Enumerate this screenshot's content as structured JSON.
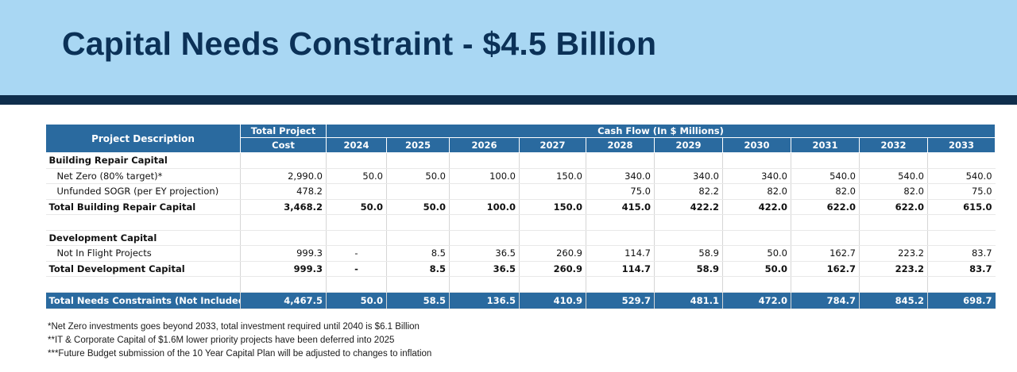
{
  "slide": {
    "title": "Capital Needs Constraint - $4.5 Billion"
  },
  "table": {
    "header": {
      "description_label": "Project Description",
      "total_cost_line1": "Total Project",
      "total_cost_line2": "Cost",
      "cashflow_label": "Cash Flow (In $ Millions)",
      "years": [
        "2024",
        "2025",
        "2026",
        "2027",
        "2028",
        "2029",
        "2030",
        "2031",
        "2032",
        "2033"
      ]
    },
    "rows": [
      {
        "kind": "section",
        "description": "Building Repair Capital",
        "total": "",
        "values": [
          "",
          "",
          "",
          "",
          "",
          "",
          "",
          "",
          "",
          ""
        ]
      },
      {
        "kind": "item",
        "description": "Net Zero (80% target)*",
        "total": "2,990.0",
        "values": [
          "50.0",
          "50.0",
          "100.0",
          "150.0",
          "340.0",
          "340.0",
          "340.0",
          "540.0",
          "540.0",
          "540.0"
        ]
      },
      {
        "kind": "item",
        "description": "Unfunded SOGR (per EY projection)",
        "total": "478.2",
        "values": [
          "",
          "",
          "",
          "",
          "75.0",
          "82.2",
          "82.0",
          "82.0",
          "82.0",
          "75.0"
        ]
      },
      {
        "kind": "total",
        "description": "Total Building Repair Capital",
        "total": "3,468.2",
        "values": [
          "50.0",
          "50.0",
          "100.0",
          "150.0",
          "415.0",
          "422.2",
          "422.0",
          "622.0",
          "622.0",
          "615.0"
        ]
      },
      {
        "kind": "blank",
        "description": "",
        "total": "",
        "values": [
          "",
          "",
          "",
          "",
          "",
          "",
          "",
          "",
          "",
          ""
        ]
      },
      {
        "kind": "section",
        "description": "Development Capital",
        "total": "",
        "values": [
          "",
          "",
          "",
          "",
          "",
          "",
          "",
          "",
          "",
          ""
        ]
      },
      {
        "kind": "item",
        "description": "Not In Flight Projects",
        "total": "999.3",
        "values": [
          "-",
          "8.5",
          "36.5",
          "260.9",
          "114.7",
          "58.9",
          "50.0",
          "162.7",
          "223.2",
          "83.7"
        ]
      },
      {
        "kind": "total",
        "description": "Total Development Capital",
        "total": "999.3",
        "values": [
          "-",
          "8.5",
          "36.5",
          "260.9",
          "114.7",
          "58.9",
          "50.0",
          "162.7",
          "223.2",
          "83.7"
        ]
      },
      {
        "kind": "blank",
        "description": "",
        "total": "",
        "values": [
          "",
          "",
          "",
          "",
          "",
          "",
          "",
          "",
          "",
          ""
        ]
      },
      {
        "kind": "grand",
        "description": "Total Needs Constraints (Not Included)",
        "total": "4,467.5",
        "values": [
          "50.0",
          "58.5",
          "136.5",
          "410.9",
          "529.7",
          "481.1",
          "472.0",
          "784.7",
          "845.2",
          "698.7"
        ]
      }
    ]
  },
  "notes": [
    "*Net Zero investments goes beyond 2033, total investment required until 2040 is $6.1 Billion",
    "**IT & Corporate Capital of $1.6M lower priority  projects have been deferred into 2025",
    "***Future Budget submission of the 10 Year Capital Plan will be adjusted to changes to inflation"
  ],
  "colors": {
    "banner": "#a9d7f3",
    "title": "#0b3157",
    "rule": "#0f2e4c",
    "table_header": "#2a6a9f"
  }
}
